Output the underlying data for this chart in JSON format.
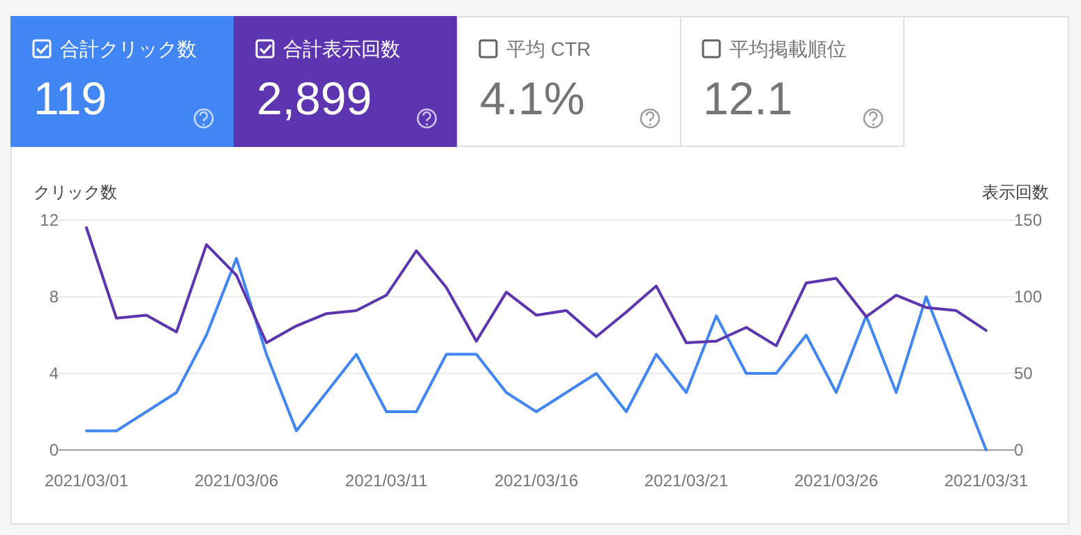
{
  "chart_data": [
    {
      "type": "other",
      "categories": [
        "合計クリック数",
        "合計表示回数",
        "平均 CTR",
        "平均掲載順位"
      ],
      "value_labels": [
        "119",
        "2,899",
        "4.1%",
        "12.1"
      ],
      "colors": [
        "#4285f4",
        "#5e35b1",
        "#ffffff",
        "#ffffff"
      ]
    },
    {
      "type": "line",
      "ylabel": "クリック数",
      "y2label": "表示回数",
      "x": [
        "2021-03-01",
        "2021-03-02",
        "2021-03-03",
        "2021-03-04",
        "2021-03-05",
        "2021-03-06",
        "2021-03-07",
        "2021-03-08",
        "2021-03-09",
        "2021-03-10",
        "2021-03-11",
        "2021-03-12",
        "2021-03-13",
        "2021-03-14",
        "2021-03-15",
        "2021-03-16",
        "2021-03-17",
        "2021-03-18",
        "2021-03-19",
        "2021-03-20",
        "2021-03-21",
        "2021-03-22",
        "2021-03-23",
        "2021-03-24",
        "2021-03-25",
        "2021-03-26",
        "2021-03-27",
        "2021-03-28",
        "2021-03-29",
        "2021-03-30",
        "2021-03-31"
      ],
      "series": [
        {
          "color": "#4285f4",
          "values": [
            1,
            1,
            2,
            3,
            6,
            10,
            5,
            1,
            3,
            5,
            2,
            2,
            5,
            5,
            3,
            2,
            3,
            4,
            2,
            5,
            3,
            7,
            4,
            4,
            6,
            3,
            7,
            3,
            8,
            4,
            0
          ]
        },
        {
          "color": "#5e35b1",
          "axis": "y2",
          "values": [
            145,
            86,
            88,
            77,
            134,
            114,
            70,
            81,
            89,
            91,
            101,
            130,
            106,
            71,
            103,
            88,
            91,
            74,
            90,
            107,
            70,
            71,
            80,
            68,
            109,
            112,
            87,
            101,
            93,
            91,
            78
          ]
        }
      ],
      "xlim": [
        "2021-02-28",
        "2021-04-01"
      ],
      "xticks": [
        {
          "value": "2021-03-01",
          "label": "2021/03/01"
        },
        {
          "value": "2021-03-06",
          "label": "2021/03/06"
        },
        {
          "value": "2021-03-11",
          "label": "2021/03/11"
        },
        {
          "value": "2021-03-16",
          "label": "2021/03/16"
        },
        {
          "value": "2021-03-21",
          "label": "2021/03/21"
        },
        {
          "value": "2021-03-26",
          "label": "2021/03/26"
        },
        {
          "value": "2021-03-31",
          "label": "2021/03/31"
        }
      ],
      "ylim": [
        0,
        12
      ],
      "yticks": [
        0,
        4,
        8,
        12
      ],
      "y2lim": [
        0,
        150
      ],
      "y2ticks": [
        0,
        50,
        100,
        150
      ],
      "grid": "y",
      "marker": "none",
      "line_style": "solid"
    }
  ]
}
